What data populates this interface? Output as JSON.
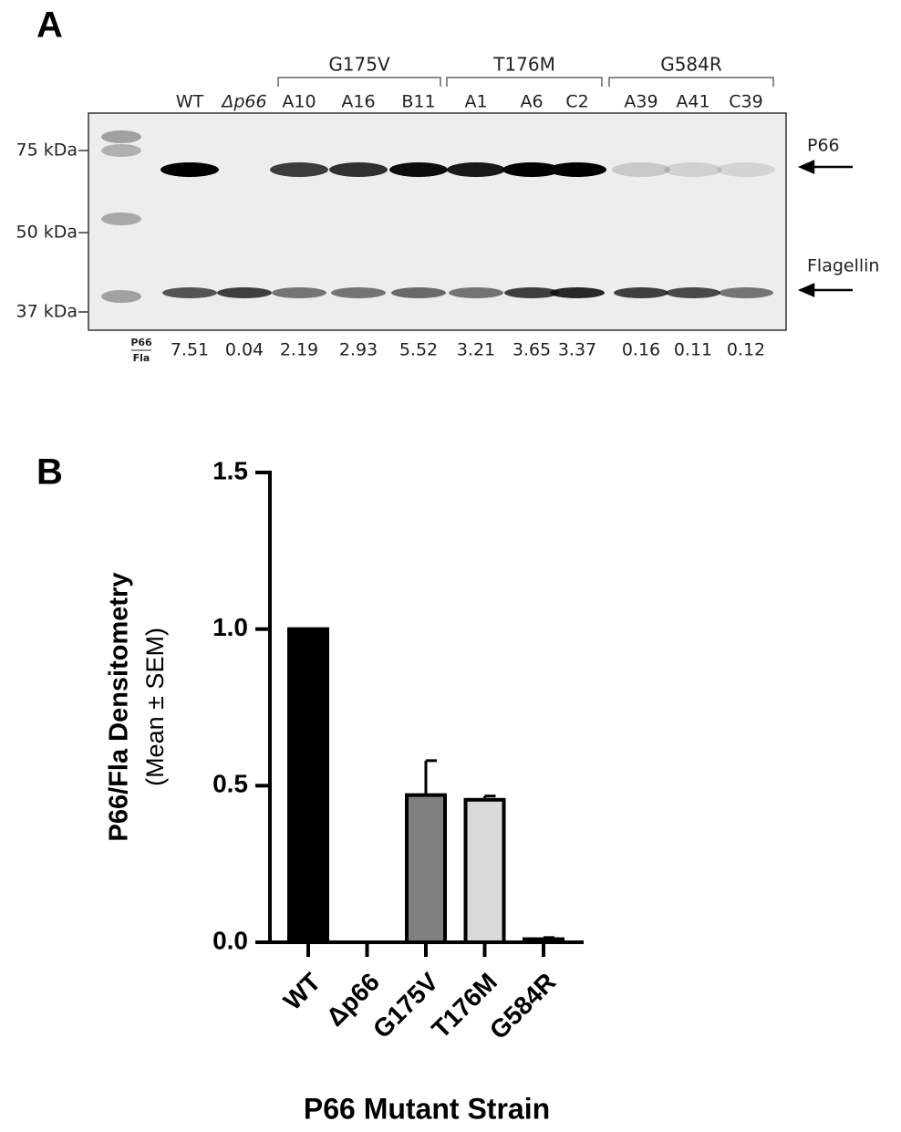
{
  "blot": {
    "label": "A",
    "groups": [
      "G175V",
      "T176M",
      "G584R"
    ],
    "lanes": [
      "WT",
      "Δp66",
      "A10",
      "A16",
      "B11",
      "A1",
      "A6",
      "C2",
      "A39",
      "A41",
      "C39"
    ],
    "markers": [
      "75 kDa",
      "50 kDa",
      "37 kDa"
    ],
    "bands": [
      "P66",
      "Flagellin"
    ],
    "ratio_label": {
      "numerator": "P66",
      "denominator": "Fla"
    },
    "ratios": [
      7.51,
      0.04,
      2.19,
      2.93,
      5.52,
      3.21,
      3.65,
      3.37,
      0.16,
      0.11,
      0.12
    ]
  },
  "chart_data": {
    "type": "bar",
    "panel_label": "B",
    "y_label": "P66/Fla Densitometry",
    "y_label_sub": "(Mean ± SEM)",
    "x_label": "P66 Mutant Strain",
    "categories": [
      "WT",
      "Δp66",
      "G175V",
      "T176M",
      "G584R"
    ],
    "values": [
      1.0,
      0,
      0.47,
      0.455,
      0.01
    ],
    "errors": [
      null,
      null,
      0.11,
      0.012,
      0.005
    ],
    "colors": [
      "#000000",
      "#000000",
      "#808080",
      "#d9d9d9",
      "#000000"
    ],
    "ylim": [
      0,
      1.5
    ],
    "yticks": [
      {
        "value": 0,
        "label": "0.0"
      },
      {
        "value": 0.5,
        "label": "0.5"
      },
      {
        "value": 1,
        "label": "1.0"
      },
      {
        "value": 1.5,
        "label": "1.5"
      }
    ],
    "grid": false
  }
}
